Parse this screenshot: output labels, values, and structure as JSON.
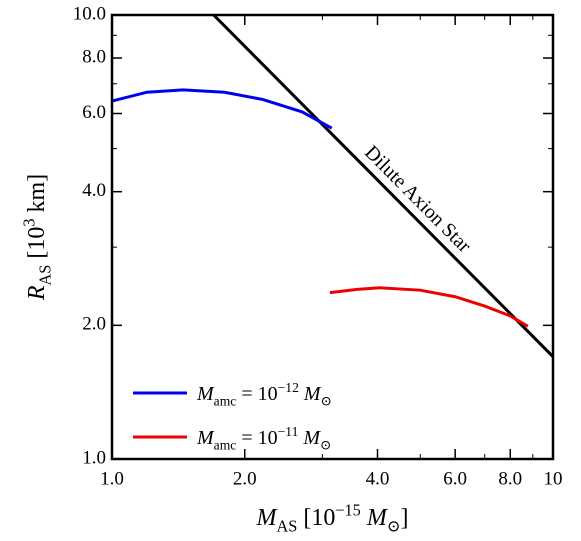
{
  "chart_data": {
    "type": "line",
    "log_x": true,
    "log_y": true,
    "x_label": [
      "M",
      "AS",
      " [10",
      "−15",
      " M",
      "⊙",
      "]"
    ],
    "y_label": [
      "R",
      "AS",
      " [10",
      "3",
      " km]"
    ],
    "xlim": [
      1,
      10
    ],
    "ylim": [
      1,
      10
    ],
    "xticks": [
      {
        "value": 1,
        "label": "1.0"
      },
      {
        "value": 2,
        "label": "2.0"
      },
      {
        "value": 4,
        "label": "4.0"
      },
      {
        "value": 6,
        "label": "6.0"
      },
      {
        "value": 8,
        "label": "8.0"
      },
      10
    ],
    "yticks": [
      {
        "value": 1,
        "label": "1.0"
      },
      {
        "value": 2,
        "label": "2.0"
      },
      {
        "value": 4,
        "label": "4.0"
      },
      {
        "value": 6,
        "label": "6.0"
      },
      {
        "value": 8,
        "label": "8.0"
      },
      {
        "value": 10,
        "label": "10.0"
      }
    ],
    "xminorticks": [
      3,
      5,
      7,
      9
    ],
    "yminorticks": [
      3,
      5,
      7,
      9
    ],
    "legend": "lower left",
    "series": [
      {
        "name": [
          "M",
          "amc",
          " = 10",
          "−12",
          " M",
          "⊙"
        ],
        "color": "#0000ee",
        "x": [
          1.0,
          1.2,
          1.45,
          1.8,
          2.2,
          2.7,
          3.15
        ],
        "values": [
          6.4,
          6.7,
          6.78,
          6.7,
          6.45,
          6.05,
          5.56
        ]
      },
      {
        "name": [
          "M",
          "amc",
          " = 10",
          "−11",
          " M",
          "⊙"
        ],
        "color": "#ee0000",
        "x": [
          3.12,
          3.6,
          4.05,
          5,
          6,
          7,
          8,
          8.77
        ],
        "values": [
          2.37,
          2.41,
          2.43,
          2.4,
          2.32,
          2.21,
          2.1,
          1.99
        ]
      }
    ],
    "boundary": {
      "label": "Dilute Axion Star",
      "color": "#000000",
      "x": [
        1.7,
        10
      ],
      "values": [
        10,
        1.7
      ]
    }
  }
}
